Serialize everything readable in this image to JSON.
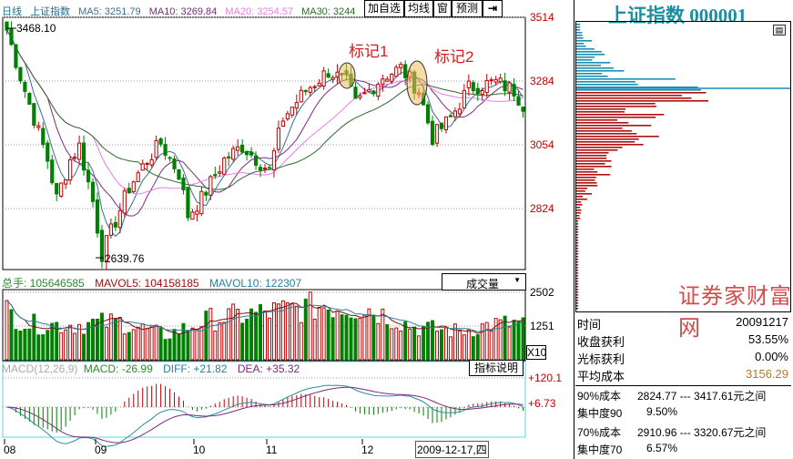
{
  "header": {
    "period": "日线",
    "name": "上证指数",
    "ma5": "MA5: 3251.79",
    "ma10": "MA10: 3269.84",
    "ma20": "MA20: 3254.57",
    "ma30": "MA30: 3244"
  },
  "toolbar": {
    "add": "加自选",
    "ma": "均线",
    "window": "窗",
    "forecast": "预测",
    "exit": "⇥"
  },
  "price_axis": [
    "3514",
    "3284",
    "3054",
    "2824"
  ],
  "annotations": {
    "high": "3468.10",
    "low": "2639.76",
    "mark1": "标记1",
    "mark2": "标记2"
  },
  "volume": {
    "total": "总手: 105646585",
    "mavol5": "MAVOL5: 104158185",
    "mavol10": "MAVOL10: 122307",
    "selector": "成交量",
    "axis": [
      "2502",
      "1251"
    ],
    "unit": "X10"
  },
  "macd": {
    "params": "MACD(12,26,9)",
    "macd": "MACD: -26.99",
    "diff": "DIFF: +21.82",
    "dea": "DEA: +35.32",
    "help": "指标说明",
    "axis": [
      "+120.1",
      "+6.73"
    ]
  },
  "time_axis": {
    "months": [
      "08",
      "09",
      "10",
      "11",
      "12"
    ],
    "cursor_date": "2009-12-17,四"
  },
  "right_panel": {
    "title": "上证指数 000001",
    "rows": [
      {
        "label": "时间",
        "value": "20091217"
      },
      {
        "label": "收盘获利",
        "value": "53.55%"
      },
      {
        "label": "光标获利",
        "value": "0.00%"
      },
      {
        "label": "平均成本",
        "value": "3156.29"
      }
    ],
    "cost90": "90%成本",
    "cost90_range": "2824.77 ---  3417.61元之间",
    "conc90": "集中度90",
    "conc90_val": "9.50%",
    "cost70": "70%成本",
    "cost70_range": "2910.96 --- 3320.67元之间",
    "conc70": "集中度70",
    "conc70_val": "6.57%",
    "watermark": "证券家财富网"
  },
  "colors": {
    "up": "#c00000",
    "down": "#008000",
    "ma5": "#3a6f8f",
    "ma10": "#7b2a7b",
    "ma20": "#e87ee8",
    "ma30": "#2d6b2d",
    "chip_blue": "#1a8fb5",
    "chip_red": "#b01010"
  },
  "chart_data": {
    "type": "candlestick",
    "ylim": [
      2600,
      3530
    ],
    "close_keypoints": [
      [
        0,
        3468
      ],
      [
        3,
        3300
      ],
      [
        6,
        3150
      ],
      [
        9,
        3000
      ],
      [
        11,
        2860
      ],
      [
        14,
        3000
      ],
      [
        16,
        3050
      ],
      [
        19,
        2850
      ],
      [
        21,
        2660
      ],
      [
        24,
        2780
      ],
      [
        27,
        2900
      ],
      [
        31,
        3000
      ],
      [
        34,
        3060
      ],
      [
        38,
        2950
      ],
      [
        40,
        2800
      ],
      [
        43,
        2860
      ],
      [
        48,
        3000
      ],
      [
        52,
        3050
      ],
      [
        58,
        2960
      ],
      [
        61,
        3150
      ],
      [
        66,
        3250
      ],
      [
        71,
        3320
      ],
      [
        75,
        3280
      ],
      [
        77,
        3200
      ],
      [
        83,
        3300
      ],
      [
        87,
        3330
      ],
      [
        91,
        3250
      ],
      [
        94,
        3080
      ],
      [
        98,
        3150
      ],
      [
        102,
        3260
      ],
      [
        108,
        3280
      ],
      [
        112,
        3250
      ],
      [
        114,
        3200
      ]
    ],
    "volume_keypoints": [
      [
        0,
        1800
      ],
      [
        5,
        1300
      ],
      [
        15,
        1300
      ],
      [
        25,
        1400
      ],
      [
        35,
        900
      ],
      [
        45,
        1500
      ],
      [
        60,
        1800
      ],
      [
        70,
        2000
      ],
      [
        80,
        1900
      ],
      [
        90,
        1200
      ],
      [
        100,
        1050
      ],
      [
        107,
        1300
      ],
      [
        114,
        1350
      ]
    ]
  }
}
